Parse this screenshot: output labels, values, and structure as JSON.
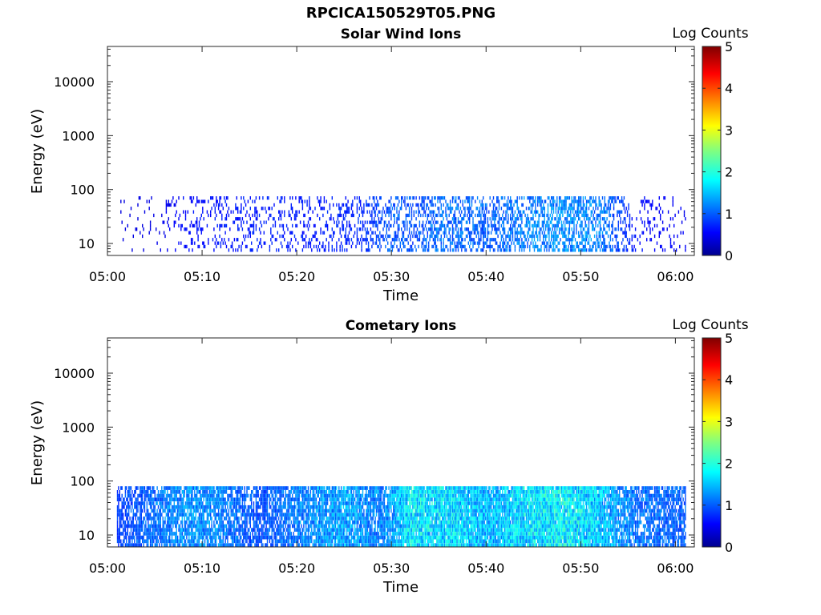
{
  "figure_title": "RPCICA150529T05.PNG",
  "chart_data": [
    {
      "type": "heatmap",
      "title": "Solar Wind Ions",
      "xlabel": "Time",
      "ylabel": "Energy (eV)",
      "x_ticks": [
        "05:00",
        "05:10",
        "05:20",
        "05:30",
        "05:40",
        "05:50",
        "06:00"
      ],
      "x_range_minutes": [
        0,
        62
      ],
      "y_scale": "log",
      "y_ticks": [
        "10",
        "100",
        "1000",
        "10000"
      ],
      "y_range_eV": [
        6,
        45000
      ],
      "colorbar": {
        "label": "Log Counts",
        "ticks": [
          "0",
          "1",
          "2",
          "3",
          "4",
          "5"
        ],
        "range": [
          0,
          5
        ],
        "colormap": "jet"
      },
      "data_extent": {
        "time_start": "05:01",
        "time_end": "06:01",
        "energy_min_eV": 7,
        "energy_max_eV": 75
      },
      "activity_profile": [
        {
          "time": "05:01",
          "level": 0.1
        },
        {
          "time": "05:05",
          "level": 0.1
        },
        {
          "time": "05:08",
          "level": 0.3
        },
        {
          "time": "05:13",
          "level": 0.4
        },
        {
          "time": "05:22",
          "level": 0.4
        },
        {
          "time": "05:27",
          "level": 0.5
        },
        {
          "time": "05:30",
          "level": 0.8
        },
        {
          "time": "05:33",
          "level": 0.7
        },
        {
          "time": "05:35",
          "level": 0.9
        },
        {
          "time": "05:40",
          "level": 0.8
        },
        {
          "time": "05:45",
          "level": 1.0
        },
        {
          "time": "05:48",
          "level": 1.1
        },
        {
          "time": "05:52",
          "level": 1.0
        },
        {
          "time": "05:56",
          "level": 0.3
        },
        {
          "time": "06:01",
          "level": 0.2
        }
      ]
    },
    {
      "type": "heatmap",
      "title": "Cometary Ions",
      "xlabel": "Time",
      "ylabel": "Energy (eV)",
      "x_ticks": [
        "05:00",
        "05:10",
        "05:20",
        "05:30",
        "05:40",
        "05:50",
        "06:00"
      ],
      "x_range_minutes": [
        0,
        62
      ],
      "y_scale": "log",
      "y_ticks": [
        "10",
        "100",
        "1000",
        "10000"
      ],
      "y_range_eV": [
        6,
        45000
      ],
      "colorbar": {
        "label": "Log Counts",
        "ticks": [
          "0",
          "1",
          "2",
          "3",
          "4",
          "5"
        ],
        "range": [
          0,
          5
        ],
        "colormap": "jet"
      },
      "data_extent": {
        "time_start": "05:01",
        "time_end": "06:01",
        "energy_min_eV": 6,
        "energy_max_eV": 80
      },
      "activity_profile": [
        {
          "time": "05:01",
          "level": 0.6
        },
        {
          "time": "05:05",
          "level": 0.9
        },
        {
          "time": "05:08",
          "level": 1.1
        },
        {
          "time": "05:12",
          "level": 1.0
        },
        {
          "time": "05:16",
          "level": 0.7
        },
        {
          "time": "05:20",
          "level": 1.0
        },
        {
          "time": "05:25",
          "level": 1.2
        },
        {
          "time": "05:29",
          "level": 1.0
        },
        {
          "time": "05:32",
          "level": 1.6
        },
        {
          "time": "05:37",
          "level": 1.5
        },
        {
          "time": "05:40",
          "level": 1.3
        },
        {
          "time": "05:45",
          "level": 1.6
        },
        {
          "time": "05:48",
          "level": 1.7
        },
        {
          "time": "05:52",
          "level": 1.4
        },
        {
          "time": "05:56",
          "level": 0.9
        },
        {
          "time": "06:01",
          "level": 0.8
        }
      ]
    }
  ]
}
